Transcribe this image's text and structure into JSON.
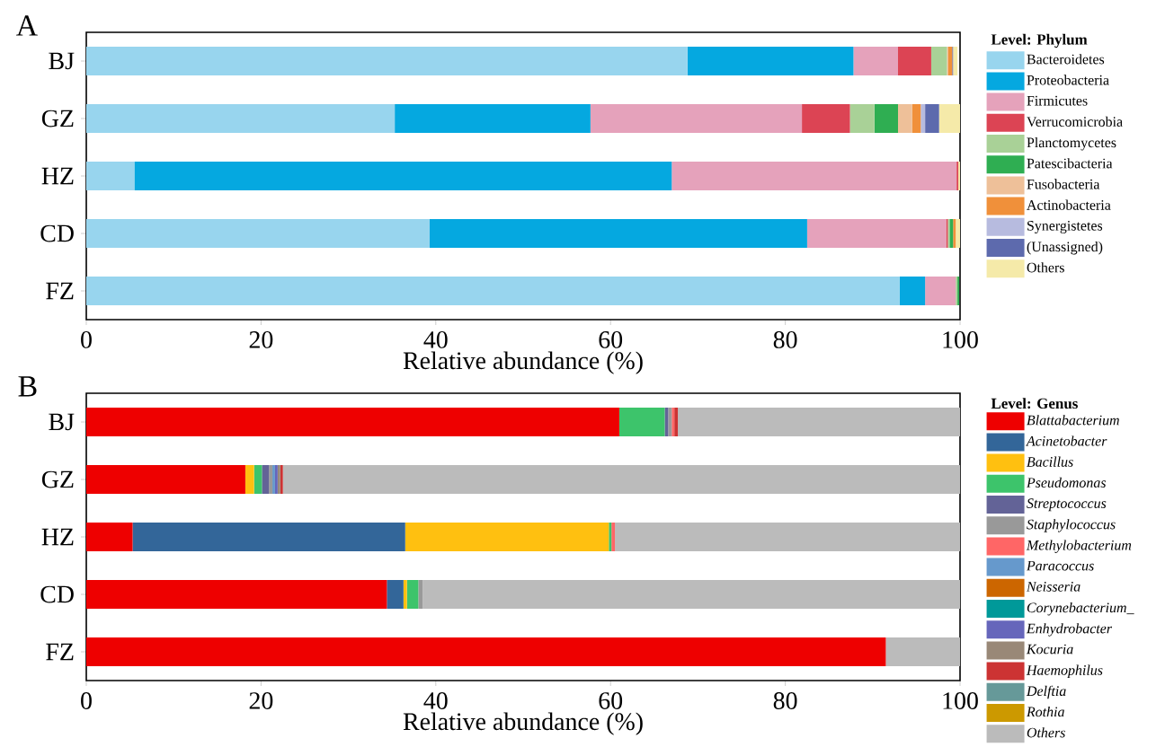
{
  "chart_data": [
    {
      "type": "bar",
      "orientation": "horizontal",
      "stacked": true,
      "categories": [
        "BJ",
        "GZ",
        "HZ",
        "CD",
        "FZ"
      ],
      "xlim": [
        0,
        100
      ],
      "xticks": [
        0,
        20,
        40,
        60,
        80,
        100
      ],
      "xlabel": "Relative abundance (%)",
      "legend": "right",
      "legend_title": "**Level: Phylum**",
      "annotations": [
        "A"
      ],
      "series": [
        {
          "name": "Bacteroidetes",
          "color": "#98d5ee",
          "values": [
            68.8,
            35.3,
            5.5,
            39.3,
            93.1
          ]
        },
        {
          "name": "Proteobacteria",
          "color": "#05a8e0",
          "values": [
            19.0,
            22.4,
            61.5,
            43.2,
            2.9
          ]
        },
        {
          "name": "Firmicutes",
          "color": "#e5a2bb",
          "values": [
            5.1,
            24.2,
            32.6,
            15.9,
            3.5
          ]
        },
        {
          "name": "Verrucomicrobia",
          "color": "#dc4454",
          "values": [
            3.8,
            5.5,
            0.2,
            0.2,
            0
          ]
        },
        {
          "name": "Planctomycetes",
          "color": "#a9d197",
          "values": [
            1.8,
            2.8,
            0,
            0.2,
            0.2
          ]
        },
        {
          "name": "Patescibacteria",
          "color": "#2fae52",
          "values": [
            0,
            2.7,
            0,
            0.4,
            0.2
          ]
        },
        {
          "name": "Fusobacteria",
          "color": "#eec099",
          "values": [
            0.1,
            1.6,
            0,
            0,
            0
          ]
        },
        {
          "name": "Actinobacteria",
          "color": "#f0903a",
          "values": [
            0.5,
            1.0,
            0,
            0.3,
            0
          ]
        },
        {
          "name": "Synergistetes",
          "color": "#b7bbdf",
          "values": [
            null,
            0.5,
            0,
            0,
            0
          ]
        },
        {
          "name": "(Unassigned)",
          "color": "#5d6aad",
          "values": [
            0.1,
            1.6,
            0,
            0,
            0
          ]
        },
        {
          "name": "Others",
          "color": "#f5eaa9",
          "values": [
            0.5,
            2.4,
            0.2,
            0.5,
            null
          ]
        }
      ]
    },
    {
      "type": "bar",
      "orientation": "horizontal",
      "stacked": true,
      "categories": [
        "BJ",
        "GZ",
        "HZ",
        "CD",
        "FZ"
      ],
      "xlim": [
        0,
        100
      ],
      "xticks": [
        0,
        20,
        40,
        60,
        80,
        100
      ],
      "xlabel": "Relative abundance (%)",
      "legend": "right",
      "legend_title": "**Level: Genus**",
      "annotations": [
        "B"
      ],
      "series": [
        {
          "name": "Blattabacterium",
          "color": "#ee0000",
          "values": [
            61.0,
            18.2,
            5.3,
            34.4,
            91.5
          ]
        },
        {
          "name": "Acinetobacter",
          "color": "#336699",
          "values": [
            0,
            0,
            31.2,
            1.9,
            0
          ]
        },
        {
          "name": "Bacillus",
          "color": "#ffc010",
          "values": [
            0,
            1.0,
            23.3,
            0.4,
            0
          ]
        },
        {
          "name": "Pseudomonas",
          "color": "#3dc46b",
          "values": [
            5.2,
            0.9,
            0.3,
            1.3,
            0
          ]
        },
        {
          "name": "Streptococcus",
          "color": "#636397",
          "values": [
            0.4,
            0.8,
            0,
            0,
            0
          ]
        },
        {
          "name": "Staphylococcus",
          "color": "#999999",
          "values": [
            0.4,
            0.4,
            0,
            0.5,
            0
          ]
        },
        {
          "name": "Methylobacterium",
          "color": "#ff6666",
          "values": [
            0.3,
            0,
            0.4,
            0,
            0
          ]
        },
        {
          "name": "Paracoccus",
          "color": "#6699cc",
          "values": [
            0,
            0.3,
            0,
            0,
            0
          ]
        },
        {
          "name": "Neisseria",
          "color": "#cc6600",
          "values": [
            0,
            0,
            0,
            0,
            0
          ]
        },
        {
          "name": "Corynebacterium_",
          "color": "#009999",
          "values": [
            0,
            0,
            0,
            0,
            0
          ]
        },
        {
          "name": "Enhydrobacter",
          "color": "#6666bb",
          "values": [
            0,
            0.3,
            0,
            0,
            0
          ]
        },
        {
          "name": "Kocuria",
          "color": "#998877",
          "values": [
            0,
            0.3,
            0,
            0,
            0
          ]
        },
        {
          "name": "Haemophilus",
          "color": "#cc3333",
          "values": [
            0.4,
            0.3,
            0,
            0,
            0
          ]
        },
        {
          "name": "Delftia",
          "color": "#669999",
          "values": [
            0,
            0,
            0,
            0,
            0
          ]
        },
        {
          "name": "Rothia",
          "color": "#cc9900",
          "values": [
            0,
            0,
            0,
            0,
            0
          ]
        },
        {
          "name": "Others",
          "color": "#bbbbbb",
          "values": [
            32.3,
            77.5,
            39.5,
            61.5,
            8.5
          ]
        }
      ]
    }
  ]
}
